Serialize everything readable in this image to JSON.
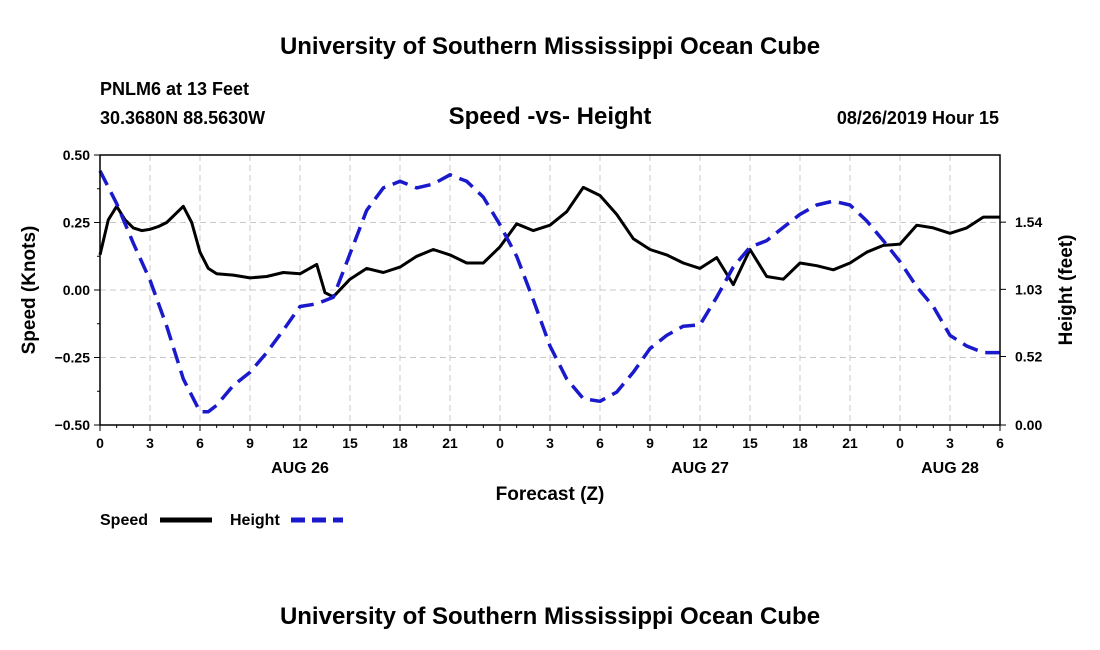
{
  "header": {
    "title": "University of Southern Mississippi Ocean Cube",
    "station": "PNLM6 at 13 Feet",
    "coords": "30.3680N 88.5630W",
    "datetime": "08/26/2019 Hour 15"
  },
  "footer": {
    "title": "University of Southern Mississippi Ocean Cube"
  },
  "chart_data": {
    "type": "line",
    "title": "Speed -vs- Height",
    "xlabel": "Forecast (Z)",
    "ylabel_left": "Speed (Knots)",
    "ylabel_right": "Height (feet)",
    "xlim": [
      0,
      54
    ],
    "ylim_left": [
      -0.5,
      0.5
    ],
    "ylim_right": [
      0.0,
      2.05
    ],
    "x_ticks": [
      0,
      3,
      6,
      9,
      12,
      15,
      18,
      21,
      24,
      27,
      30,
      33,
      36,
      39,
      42,
      45,
      48,
      51,
      54
    ],
    "x_tick_labels": [
      "0",
      "3",
      "6",
      "9",
      "12",
      "15",
      "18",
      "21",
      "0",
      "3",
      "6",
      "9",
      "12",
      "15",
      "18",
      "21",
      "0",
      "3",
      "6"
    ],
    "date_labels": [
      {
        "x": 12,
        "label": "AUG 26"
      },
      {
        "x": 36,
        "label": "AUG 27"
      },
      {
        "x": 51,
        "label": "AUG 28"
      }
    ],
    "y_ticks_left": [
      -0.5,
      -0.25,
      0.0,
      0.25,
      0.5
    ],
    "y_tick_labels_left": [
      "−0.50",
      "−0.25",
      "0.00",
      "0.25",
      "0.50"
    ],
    "y_ticks_right": [
      0.0,
      0.52,
      1.03,
      1.54
    ],
    "y_tick_labels_right": [
      "0.00",
      "0.52",
      "1.03",
      "1.54"
    ],
    "grid": true,
    "legend": [
      {
        "name": "Speed",
        "color": "#000000",
        "style": "solid"
      },
      {
        "name": "Height",
        "color": "#1a1acc",
        "style": "dashed"
      }
    ],
    "series": [
      {
        "name": "Speed",
        "axis": "left",
        "color": "#000000",
        "x": [
          0,
          0.5,
          1,
          1.5,
          2,
          2.5,
          3,
          3.5,
          4,
          4.5,
          5,
          5.5,
          6,
          6.5,
          7,
          8,
          9,
          10,
          11,
          12,
          13,
          13.5,
          14,
          15,
          16,
          17,
          18,
          19,
          20,
          21,
          22,
          23,
          24,
          25,
          26,
          27,
          28,
          29,
          30,
          31,
          32,
          33,
          34,
          35,
          36,
          37,
          38,
          39,
          40,
          41,
          42,
          43,
          44,
          45,
          46,
          47,
          48,
          49,
          50,
          51,
          52,
          53,
          54
        ],
        "y": [
          0.13,
          0.26,
          0.31,
          0.26,
          0.23,
          0.22,
          0.225,
          0.235,
          0.25,
          0.28,
          0.31,
          0.25,
          0.14,
          0.08,
          0.06,
          0.055,
          0.045,
          0.05,
          0.065,
          0.06,
          0.095,
          -0.01,
          -0.025,
          0.04,
          0.08,
          0.065,
          0.085,
          0.125,
          0.15,
          0.13,
          0.1,
          0.1,
          0.16,
          0.245,
          0.22,
          0.24,
          0.29,
          0.38,
          0.35,
          0.28,
          0.19,
          0.15,
          0.13,
          0.1,
          0.08,
          0.12,
          0.02,
          0.15,
          0.05,
          0.04,
          0.1,
          0.09,
          0.075,
          0.1,
          0.14,
          0.165,
          0.17,
          0.24,
          0.23,
          0.21,
          0.23,
          0.27,
          0.27
        ]
      },
      {
        "name": "Height",
        "axis": "right",
        "color": "#1a1acc",
        "x": [
          0,
          1,
          2,
          3,
          4,
          5,
          6,
          6.5,
          7,
          8,
          9,
          10,
          11,
          12,
          13,
          14,
          15,
          16,
          17,
          18,
          19,
          20,
          21,
          22,
          23,
          24,
          25,
          26,
          27,
          28,
          29,
          30,
          31,
          32,
          33,
          34,
          35,
          36,
          37,
          38,
          39,
          40,
          41,
          42,
          43,
          44,
          45,
          46,
          47,
          48,
          49,
          50,
          51,
          52,
          53,
          54
        ],
        "y": [
          1.93,
          1.68,
          1.38,
          1.1,
          0.75,
          0.35,
          0.1,
          0.1,
          0.15,
          0.3,
          0.4,
          0.55,
          0.72,
          0.9,
          0.92,
          0.97,
          1.3,
          1.63,
          1.8,
          1.85,
          1.8,
          1.83,
          1.9,
          1.85,
          1.73,
          1.52,
          1.28,
          0.95,
          0.6,
          0.35,
          0.2,
          0.18,
          0.25,
          0.4,
          0.58,
          0.68,
          0.75,
          0.76,
          0.97,
          1.2,
          1.35,
          1.4,
          1.5,
          1.6,
          1.67,
          1.7,
          1.67,
          1.55,
          1.4,
          1.24,
          1.05,
          0.9,
          0.68,
          0.6,
          0.55,
          0.55
        ]
      }
    ]
  }
}
